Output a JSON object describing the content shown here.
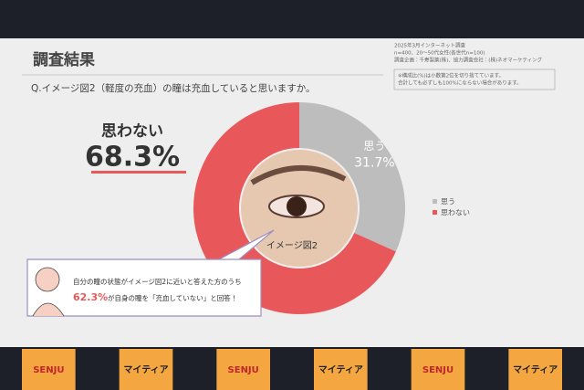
{
  "slide": {
    "notes": [
      "2025年3月インターネット調査",
      "n=400、20～50代女性(各世代n=100)",
      "調査企画：千寿製薬(株)、協力調査会社：(株)ネオマーケティング"
    ],
    "disclaimer": [
      "※構成比(%)は小数第2位を切り捨てています。",
      "合計しても必ずしも100%にならない場合があります。"
    ],
    "callout": {
      "line1": "自分の瞳の状態がイメージ図2に近いと答えた方のうち",
      "highlight": "62.3%",
      "line2": "が自身の瞳を「充血していない」と回答！"
    },
    "image_label": "イメージ図2"
  },
  "chart_data": {
    "type": "pie",
    "donut": true,
    "title": "調査結果",
    "subtitle": "Q.イメージ図2（軽度の充血）の瞳は充血していると思いますか。",
    "categories": [
      "思う",
      "思わない"
    ],
    "values": [
      31.7,
      68.3
    ],
    "value_labels": [
      "31.7%",
      "68.3%"
    ],
    "colors": [
      "#bdbdbd",
      "#e8585b"
    ],
    "legend": "right"
  },
  "stage": {
    "banners": [
      "SENJU",
      "マイティア",
      "SENJU",
      "マイティア",
      "SENJU",
      "マイティア"
    ]
  }
}
